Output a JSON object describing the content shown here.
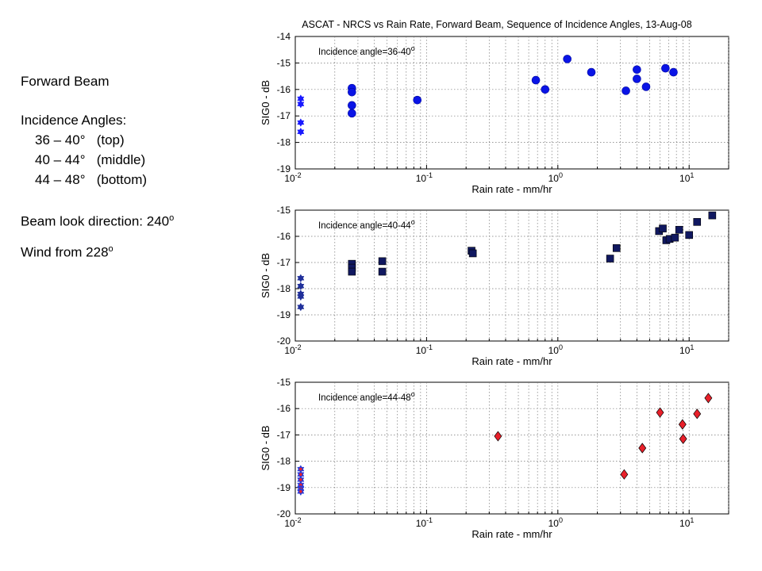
{
  "sidebar": {
    "heading": "Forward Beam",
    "incidence_heading": "Incidence Angles:",
    "angles": [
      {
        "range": "36 – 40",
        "deg": "°",
        "pos": "(top)"
      },
      {
        "range": "40 – 44",
        "deg": "°",
        "pos": "(middle)"
      },
      {
        "range": "44 – 48",
        "deg": "°",
        "pos": "(bottom)"
      }
    ],
    "look_label": "Beam look direction: 240",
    "look_sup": "o",
    "wind_label": "Wind from 228",
    "wind_sup": "o"
  },
  "chart_data": [
    {
      "type": "scatter",
      "title": "ASCAT - NRCS vs Rain Rate, Forward Beam, Sequence of Incidence Angles, 13-Aug-08",
      "annotation": "Incidence angle=36-40",
      "annotation_sup": "o",
      "xlabel": "Rain rate - mm/hr",
      "ylabel": "SIG0 - dB",
      "xscale": "log",
      "xlim": [
        0.01,
        20
      ],
      "ylim": [
        -19,
        -14
      ],
      "yticks": [
        -19,
        -18,
        -17,
        -16,
        -15,
        -14
      ],
      "xticks": [
        "10-2",
        "10-1",
        "100",
        "101"
      ],
      "grid": true,
      "colors": {
        "marker": "#0a14e6",
        "star": "#1a1aff"
      },
      "series": [
        {
          "marker": "star",
          "x": [
            0.011,
            0.011,
            0.011,
            0.011
          ],
          "y": [
            -16.35,
            -16.55,
            -17.25,
            -17.6
          ]
        },
        {
          "marker": "circle",
          "x": [
            0.027,
            0.027,
            0.027,
            0.027,
            0.085,
            0.68,
            0.8,
            1.18,
            1.8,
            3.3,
            4.0,
            4.0,
            4.7,
            6.6,
            7.6
          ],
          "y": [
            -15.95,
            -16.1,
            -16.6,
            -16.9,
            -16.4,
            -15.65,
            -16.0,
            -14.85,
            -15.35,
            -16.05,
            -15.25,
            -15.6,
            -15.9,
            -15.2,
            -15.35
          ]
        }
      ]
    },
    {
      "type": "scatter",
      "annotation": "Incidence angle=40-44",
      "annotation_sup": "o",
      "xlabel": "Rain rate - mm/hr",
      "ylabel": "SIG0 - dB",
      "xscale": "log",
      "xlim": [
        0.01,
        20
      ],
      "ylim": [
        -20,
        -15
      ],
      "yticks": [
        -20,
        -19,
        -18,
        -17,
        -16,
        -15
      ],
      "xticks": [
        "10-2",
        "10-1",
        "100",
        "101"
      ],
      "grid": true,
      "colors": {
        "marker": "#101860",
        "star": "#20309a"
      },
      "series": [
        {
          "marker": "star",
          "x": [
            0.011,
            0.011,
            0.011,
            0.011,
            0.011
          ],
          "y": [
            -17.6,
            -17.9,
            -18.2,
            -18.3,
            -18.7
          ]
        },
        {
          "marker": "square",
          "x": [
            0.027,
            0.027,
            0.027,
            0.046,
            0.046,
            0.22,
            0.225,
            2.5,
            2.8,
            5.9,
            6.3,
            6.7,
            7.1,
            7.8,
            8.4,
            10.0,
            11.5,
            15.0
          ],
          "y": [
            -17.05,
            -17.2,
            -17.35,
            -16.95,
            -17.35,
            -16.55,
            -16.65,
            -16.85,
            -16.45,
            -15.8,
            -15.7,
            -16.15,
            -16.1,
            -16.05,
            -15.75,
            -15.95,
            -15.45,
            -15.2
          ]
        }
      ]
    },
    {
      "type": "scatter",
      "annotation": "Incidence angle=44-48",
      "annotation_sup": "o",
      "xlabel": "Rain rate - mm/hr",
      "ylabel": "SIG0 - dB",
      "xscale": "log",
      "xlim": [
        0.01,
        20
      ],
      "ylim": [
        -20,
        -15
      ],
      "yticks": [
        -20,
        -19,
        -18,
        -17,
        -16,
        -15
      ],
      "xticks": [
        "10-2",
        "10-1",
        "100",
        "101"
      ],
      "grid": true,
      "colors": {
        "marker": "#e8202a",
        "star": "#2a3ad8"
      },
      "series": [
        {
          "marker": "star",
          "x": [
            0.011,
            0.011,
            0.011,
            0.011,
            0.011,
            0.011
          ],
          "y": [
            -18.3,
            -18.5,
            -18.7,
            -18.9,
            -19.05,
            -19.15
          ]
        },
        {
          "marker": "diamond",
          "x": [
            0.35,
            3.2,
            4.4,
            6.0,
            8.9,
            9.0,
            11.5,
            14.0
          ],
          "y": [
            -17.05,
            -18.5,
            -17.5,
            -16.15,
            -16.6,
            -17.15,
            -16.2,
            -15.6
          ]
        }
      ]
    }
  ]
}
